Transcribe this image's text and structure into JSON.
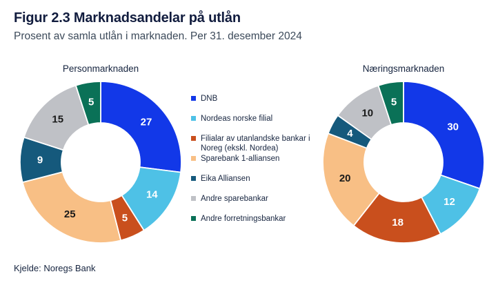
{
  "header": {
    "title": "Figur 2.3 Marknadsandelar på utlån",
    "subtitle": "Prosent av samla utlån i marknaden. Per 31. desember 2024"
  },
  "footer": {
    "source": "Kjelde: Noregs Bank"
  },
  "colors": {
    "title_navy": "#111c3e",
    "subtitle_gray": "#3c4a5a",
    "label_dark": "#1a1a1a",
    "label_light": "#ffffff"
  },
  "legend": {
    "position": "center-between-charts",
    "items": [
      {
        "label": "DNB",
        "color": "#1238e8"
      },
      {
        "label": "Nordeas norske filial",
        "color": "#4ec1e6"
      },
      {
        "label": "Filialar av utanlandske bankar i Noreg (ekskl. Nordea)",
        "color": "#c94f1d"
      },
      {
        "label": "Sparebank 1-alliansen",
        "color": "#f8bf85"
      },
      {
        "label": "Eika Alliansen",
        "color": "#15597c"
      },
      {
        "label": "Andre sparebankar",
        "color": "#bfc1c6"
      },
      {
        "label": "Andre forretningsbankar",
        "color": "#0a7157"
      }
    ]
  },
  "chart_data": [
    {
      "type": "pie",
      "subtype": "donut",
      "title": "Personmarknaden",
      "unit": "percent of total lending",
      "start_angle": "12 o'clock",
      "direction": "clockwise",
      "categories": [
        "DNB",
        "Nordeas norske filial",
        "Filialar av utanlandske bankar i Noreg (ekskl. Nordea)",
        "Sparebank 1-alliansen",
        "Eika Alliansen",
        "Andre sparebankar",
        "Andre forretningsbankar"
      ],
      "values": [
        27,
        14,
        5,
        25,
        9,
        15,
        5
      ],
      "colors": [
        "#1238e8",
        "#4ec1e6",
        "#c94f1d",
        "#f8bf85",
        "#15597c",
        "#bfc1c6",
        "#0a7157"
      ],
      "label_colors": [
        "#ffffff",
        "#ffffff",
        "#ffffff",
        "#1a1a1a",
        "#ffffff",
        "#1a1a1a",
        "#ffffff"
      ]
    },
    {
      "type": "pie",
      "subtype": "donut",
      "title": "Næringsmarknaden",
      "unit": "percent of total lending",
      "start_angle": "12 o'clock",
      "direction": "clockwise",
      "categories": [
        "DNB",
        "Nordeas norske filial",
        "Filialar av utanlandske bankar i Noreg (ekskl. Nordea)",
        "Sparebank 1-alliansen",
        "Eika Alliansen",
        "Andre sparebankar",
        "Andre forretningsbankar"
      ],
      "values": [
        30,
        12,
        18,
        20,
        4,
        10,
        5
      ],
      "colors": [
        "#1238e8",
        "#4ec1e6",
        "#c94f1d",
        "#f8bf85",
        "#15597c",
        "#bfc1c6",
        "#0a7157"
      ],
      "label_colors": [
        "#ffffff",
        "#ffffff",
        "#ffffff",
        "#1a1a1a",
        "#ffffff",
        "#1a1a1a",
        "#ffffff"
      ]
    }
  ]
}
